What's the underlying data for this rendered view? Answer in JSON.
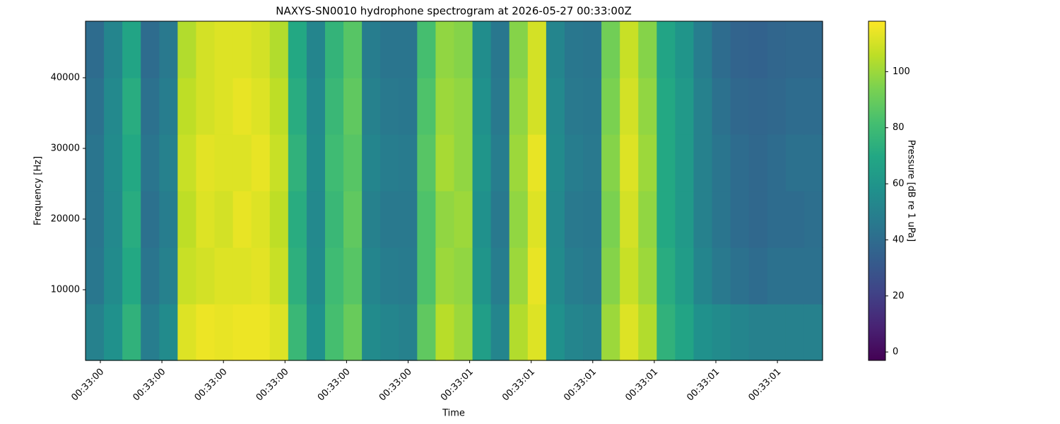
{
  "chart_data": {
    "type": "heatmap",
    "title": "NAXYS-SN0010 hydrophone spectrogram at 2026-05-27 00:33:00Z",
    "xlabel": "Time",
    "ylabel": "Frequency [Hz]",
    "colorbar_label": "Pressure [dB re 1 uPa]",
    "colormap": "viridis",
    "xtick_labels": [
      "00:33:00",
      "00:33:00",
      "00:33:00",
      "00:33:00",
      "00:33:00",
      "00:33:00",
      "00:33:01",
      "00:33:01",
      "00:33:01",
      "00:33:01",
      "00:33:01",
      "00:33:01"
    ],
    "ylim": [
      0,
      48000
    ],
    "yticks": [
      10000,
      20000,
      30000,
      40000
    ],
    "clim": [
      -3,
      118
    ],
    "cticks": [
      0,
      20,
      40,
      60,
      80,
      100
    ],
    "z": [
      [
        50,
        58,
        75,
        48,
        55,
        112,
        115,
        114,
        115,
        115,
        112,
        78,
        58,
        82,
        90,
        55,
        52,
        50,
        88,
        105,
        100,
        65,
        52,
        104,
        112,
        58,
        52,
        50,
        100,
        112,
        104,
        75,
        68,
        58,
        55,
        52,
        50,
        50,
        50,
        50
      ],
      [
        45,
        55,
        70,
        44,
        50,
        108,
        110,
        112,
        112,
        113,
        108,
        74,
        55,
        80,
        86,
        52,
        48,
        47,
        84,
        100,
        98,
        60,
        48,
        100,
        114,
        55,
        48,
        46,
        96,
        108,
        100,
        72,
        64,
        52,
        46,
        42,
        40,
        42,
        42,
        42
      ],
      [
        44,
        54,
        72,
        42,
        48,
        106,
        112,
        110,
        114,
        112,
        106,
        72,
        54,
        78,
        88,
        50,
        46,
        46,
        84,
        98,
        100,
        58,
        46,
        98,
        112,
        54,
        46,
        45,
        94,
        110,
        98,
        70,
        62,
        50,
        44,
        40,
        38,
        40,
        40,
        41
      ],
      [
        44,
        55,
        70,
        44,
        50,
        108,
        113,
        112,
        112,
        114,
        108,
        75,
        55,
        80,
        86,
        52,
        48,
        47,
        86,
        102,
        98,
        60,
        48,
        100,
        114,
        55,
        48,
        46,
        96,
        112,
        100,
        70,
        62,
        50,
        44,
        40,
        38,
        40,
        42,
        42
      ],
      [
        42,
        54,
        72,
        42,
        48,
        106,
        110,
        112,
        114,
        112,
        106,
        72,
        54,
        78,
        88,
        50,
        46,
        45,
        84,
        100,
        98,
        58,
        46,
        98,
        110,
        54,
        46,
        45,
        94,
        110,
        98,
        70,
        62,
        50,
        42,
        38,
        37,
        38,
        40,
        40
      ],
      [
        40,
        52,
        68,
        40,
        46,
        104,
        110,
        112,
        112,
        110,
        104,
        70,
        52,
        76,
        86,
        48,
        44,
        44,
        82,
        98,
        96,
        56,
        45,
        96,
        110,
        52,
        45,
        44,
        92,
        108,
        96,
        68,
        60,
        48,
        40,
        36,
        35,
        37,
        38,
        38
      ]
    ]
  }
}
